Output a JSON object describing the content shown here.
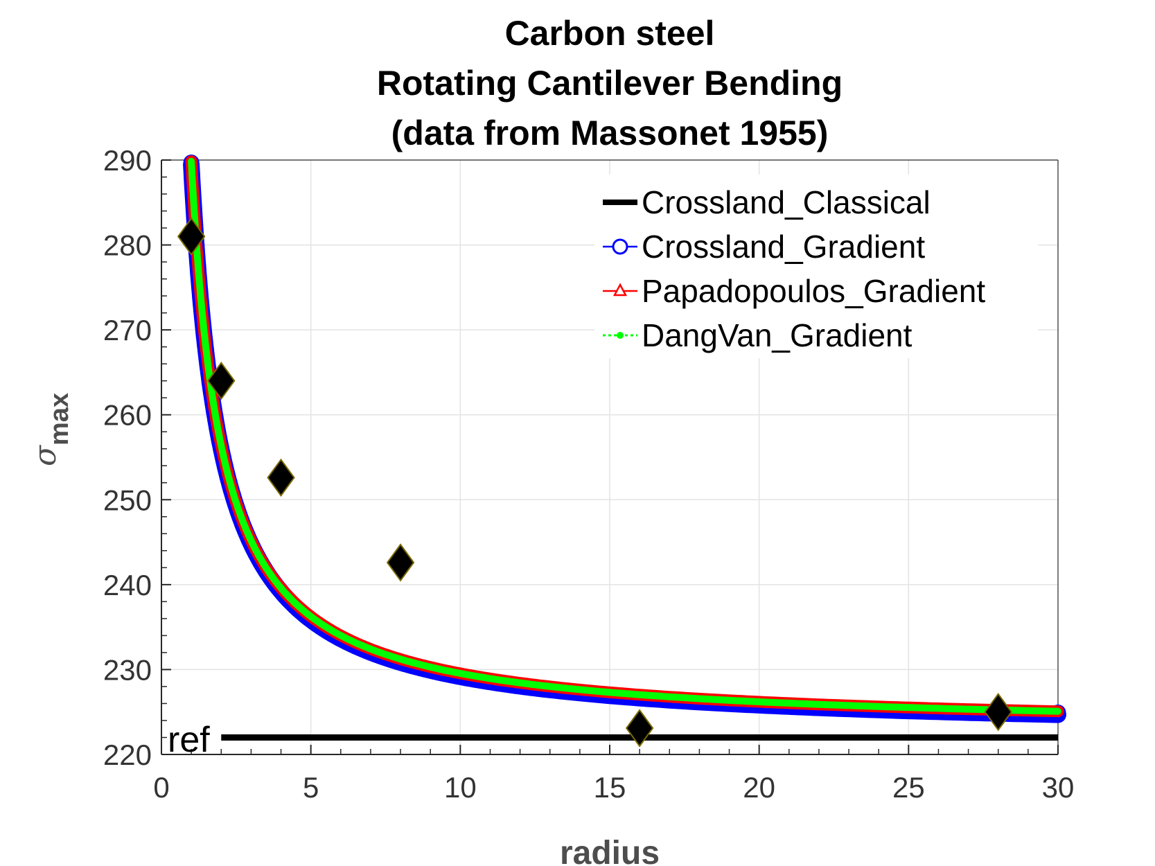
{
  "chart_data": {
    "type": "line",
    "title": [
      "Carbon steel",
      "Rotating Cantilever Bending",
      "(data from Massonet 1955)"
    ],
    "xlabel": "radius",
    "ylabel_symbol": "σ",
    "ylabel_subscript": "max",
    "xlim": [
      0,
      30
    ],
    "ylim": [
      220,
      290
    ],
    "xticks": [
      0,
      5,
      10,
      15,
      20,
      25,
      30
    ],
    "yticks": [
      220,
      230,
      240,
      250,
      260,
      270,
      280,
      290
    ],
    "grid": true,
    "legend_position": "top-right",
    "reference": {
      "label": "ref",
      "y": 222,
      "x_start": 2.0,
      "x_end": 30
    },
    "series": [
      {
        "name": "Crossland_Classical",
        "kind": "constant",
        "y": 222,
        "color": "#000000",
        "style": "solid"
      },
      {
        "name": "Crossland_Gradient",
        "kind": "curve",
        "x_start": 1,
        "x_end": 30,
        "y_inf": 222.7,
        "k": 67.0,
        "color": "#0000ff",
        "marker": "circle"
      },
      {
        "name": "Papadopoulos_Gradient",
        "kind": "curve",
        "x_start": 1,
        "x_end": 30,
        "y_inf": 222.7,
        "k": 67.0,
        "color": "#ff0000",
        "marker": "triangle"
      },
      {
        "name": "DangVan_Gradient",
        "kind": "curve",
        "x_start": 1,
        "x_end": 30,
        "y_inf": 222.7,
        "k": 67.0,
        "color": "#00ff00",
        "marker": "dot"
      }
    ],
    "experimental_points": {
      "marker": "diamond",
      "color": "#000000",
      "points": [
        {
          "x": 1,
          "y": 281
        },
        {
          "x": 2,
          "y": 264
        },
        {
          "x": 4,
          "y": 252.6
        },
        {
          "x": 8,
          "y": 242.6
        },
        {
          "x": 16,
          "y": 223.1
        },
        {
          "x": 28,
          "y": 225
        }
      ]
    }
  }
}
